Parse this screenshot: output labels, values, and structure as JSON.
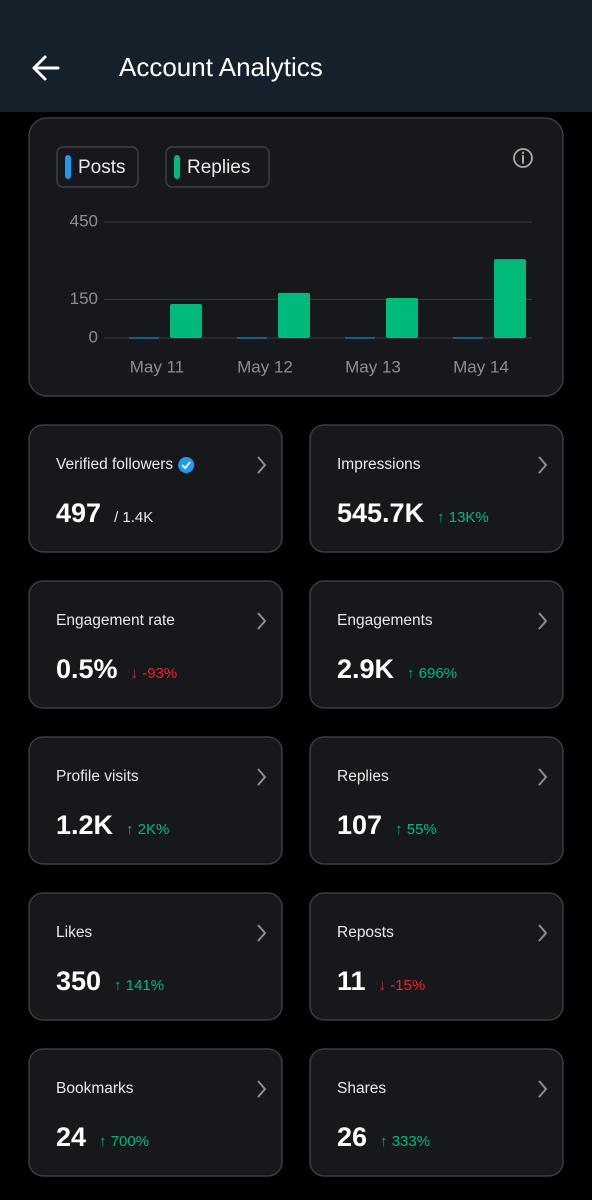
{
  "header": {
    "title": "Account Analytics"
  },
  "chart_data": {
    "type": "bar",
    "categories": [
      "May 11",
      "May 12",
      "May 13",
      "May 14"
    ],
    "series": [
      {
        "name": "Posts",
        "color": "#1d9bf0",
        "values": [
          2,
          2,
          2,
          2
        ]
      },
      {
        "name": "Replies",
        "color": "#00ba7c",
        "values": [
          132,
          175,
          155,
          306
        ]
      }
    ],
    "ylim": [
      0,
      450
    ],
    "yticks": [
      0,
      150,
      450
    ],
    "grid": true
  },
  "cards": [
    {
      "label": "Verified followers",
      "value": "497",
      "sub": "/ 1.4K",
      "verified": true
    },
    {
      "label": "Impressions",
      "value": "545.7K",
      "change": "↑ 13K%",
      "trend": "up"
    },
    {
      "label": "Engagement rate",
      "value": "0.5%",
      "change": "↓ -93%",
      "trend": "down"
    },
    {
      "label": "Engagements",
      "value": "2.9K",
      "change": "↑ 696%",
      "trend": "up"
    },
    {
      "label": "Profile visits",
      "value": "1.2K",
      "change": "↑ 2K%",
      "trend": "up"
    },
    {
      "label": "Replies",
      "value": "107",
      "change": "↑ 55%",
      "trend": "up"
    },
    {
      "label": "Likes",
      "value": "350",
      "change": "↑ 141%",
      "trend": "up"
    },
    {
      "label": "Reposts",
      "value": "11",
      "change": "↓ -15%",
      "trend": "down"
    },
    {
      "label": "Bookmarks",
      "value": "24",
      "change": "↑ 700%",
      "trend": "up"
    },
    {
      "label": "Shares",
      "value": "26",
      "change": "↑ 333%",
      "trend": "up"
    }
  ]
}
